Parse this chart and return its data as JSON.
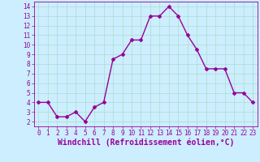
{
  "x": [
    0,
    1,
    2,
    3,
    4,
    5,
    6,
    7,
    8,
    9,
    10,
    11,
    12,
    13,
    14,
    15,
    16,
    17,
    18,
    19,
    20,
    21,
    22,
    23
  ],
  "y": [
    4.0,
    4.0,
    2.5,
    2.5,
    3.0,
    2.0,
    3.5,
    4.0,
    8.5,
    9.0,
    10.5,
    10.5,
    13.0,
    13.0,
    14.0,
    13.0,
    11.0,
    9.5,
    7.5,
    7.5,
    7.5,
    5.0,
    5.0,
    4.0
  ],
  "line_color": "#990099",
  "marker": "D",
  "marker_size": 2.0,
  "bg_color": "#cceeff",
  "grid_color": "#aaddcc",
  "xlabel": "Windchill (Refroidissement éolien,°C)",
  "xlabel_color": "#990099",
  "ylim": [
    1.5,
    14.5
  ],
  "xlim": [
    -0.5,
    23.5
  ],
  "yticks": [
    2,
    3,
    4,
    5,
    6,
    7,
    8,
    9,
    10,
    11,
    12,
    13,
    14
  ],
  "xtick_labels": [
    "0",
    "1",
    "2",
    "3",
    "4",
    "5",
    "6",
    "7",
    "8",
    "9",
    "10",
    "11",
    "12",
    "13",
    "14",
    "15",
    "16",
    "17",
    "18",
    "19",
    "20",
    "21",
    "22",
    "23"
  ],
  "tick_color": "#990099",
  "tick_fontsize": 5.5,
  "xlabel_fontsize": 7.0,
  "linewidth": 1.0
}
